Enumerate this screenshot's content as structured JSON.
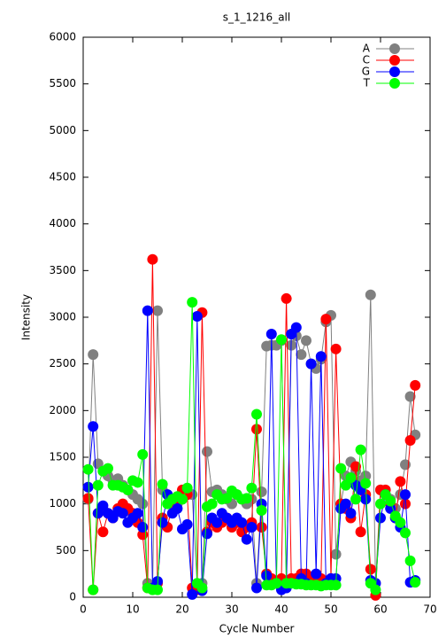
{
  "chart_data": {
    "type": "line",
    "title": "s_1_1216_all",
    "x_label": "Cycle Number",
    "y_label": "Intensity",
    "x": [
      1,
      2,
      3,
      4,
      5,
      6,
      7,
      8,
      9,
      10,
      11,
      12,
      13,
      14,
      15,
      16,
      17,
      18,
      19,
      20,
      21,
      22,
      23,
      24,
      25,
      26,
      27,
      28,
      29,
      30,
      31,
      32,
      33,
      34,
      35,
      36,
      37,
      38,
      39,
      40,
      41,
      42,
      43,
      44,
      45,
      46,
      47,
      48,
      49,
      50,
      51,
      52,
      53,
      54,
      55,
      56,
      57,
      58,
      59,
      60,
      61,
      62,
      63,
      64,
      65,
      66,
      67
    ],
    "xlim": [
      0,
      70
    ],
    "xticks": [
      0,
      10,
      20,
      30,
      40,
      50,
      60,
      70
    ],
    "ylim": [
      0,
      6000
    ],
    "yticks": [
      0,
      500,
      1000,
      1500,
      2000,
      2500,
      3000,
      3500,
      4000,
      4500,
      5000,
      5500,
      6000
    ],
    "legend": "top-right",
    "series": [
      {
        "name": "A",
        "color": "#808080",
        "values": [
          1050,
          2600,
          1430,
          1350,
          1300,
          1250,
          1270,
          1200,
          1150,
          1100,
          1050,
          1000,
          150,
          100,
          3070,
          1150,
          1100,
          1050,
          1000,
          1050,
          1100,
          1100,
          130,
          150,
          1560,
          1130,
          1150,
          1100,
          1050,
          1000,
          1100,
          1050,
          1000,
          1050,
          150,
          1130,
          2690,
          2700,
          2700,
          2750,
          150,
          2700,
          2800,
          2600,
          2750,
          2500,
          2450,
          2550,
          2950,
          3020,
          460,
          1000,
          1300,
          1450,
          1350,
          1250,
          1300,
          3240,
          150,
          1150,
          1100,
          1050,
          950,
          1100,
          1420,
          2150,
          1740
        ]
      },
      {
        "name": "C",
        "color": "#ff0000",
        "values": [
          1060,
          80,
          900,
          700,
          900,
          850,
          950,
          1000,
          950,
          900,
          800,
          670,
          100,
          3620,
          150,
          850,
          750,
          1000,
          1050,
          1150,
          1100,
          100,
          80,
          3050,
          700,
          800,
          750,
          800,
          850,
          750,
          800,
          700,
          750,
          800,
          1800,
          750,
          250,
          200,
          150,
          200,
          3200,
          200,
          200,
          250,
          250,
          200,
          200,
          200,
          2980,
          200,
          2660,
          1000,
          950,
          850,
          1400,
          700,
          1100,
          300,
          20,
          1150,
          1150,
          1000,
          850,
          1240,
          1000,
          1680,
          2270
        ]
      },
      {
        "name": "G",
        "color": "#0000ff",
        "values": [
          1180,
          1830,
          900,
          980,
          900,
          850,
          920,
          900,
          800,
          850,
          900,
          750,
          3070,
          100,
          170,
          800,
          1100,
          900,
          950,
          730,
          780,
          30,
          3010,
          70,
          680,
          850,
          800,
          900,
          850,
          800,
          850,
          800,
          620,
          750,
          100,
          1000,
          230,
          2820,
          150,
          80,
          100,
          2820,
          2890,
          200,
          150,
          2500,
          250,
          2580,
          150,
          200,
          200,
          950,
          1000,
          900,
          1200,
          1150,
          1050,
          180,
          150,
          850,
          1100,
          950,
          850,
          750,
          1100,
          160,
          180
        ]
      },
      {
        "name": "T",
        "color": "#00ff00",
        "values": [
          1370,
          80,
          1200,
          1350,
          1380,
          1200,
          1200,
          1180,
          1150,
          1250,
          1230,
          1530,
          100,
          80,
          80,
          1210,
          1000,
          1050,
          1080,
          1050,
          1170,
          3160,
          150,
          100,
          970,
          1000,
          1100,
          1050,
          1060,
          1140,
          1100,
          1050,
          1060,
          1170,
          1960,
          930,
          130,
          130,
          150,
          2760,
          150,
          150,
          140,
          140,
          130,
          130,
          130,
          120,
          130,
          130,
          130,
          1380,
          1200,
          1280,
          1050,
          1580,
          1220,
          150,
          80,
          1000,
          1100,
          1030,
          870,
          800,
          690,
          390,
          160
        ]
      }
    ]
  }
}
